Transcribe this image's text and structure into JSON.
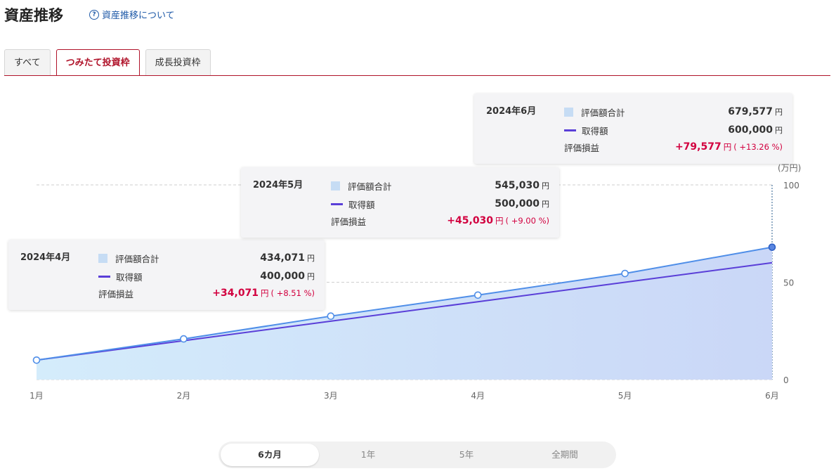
{
  "header": {
    "title": "資産推移",
    "help_link": "資産推移について"
  },
  "tabs": [
    {
      "label": "すべて",
      "active": false
    },
    {
      "label": "つみたて投資枠",
      "active": true
    },
    {
      "label": "成長投資枠",
      "active": false
    }
  ],
  "colors": {
    "accent": "#b0132a",
    "valuation_line": "#4f8ee8",
    "cost_line": "#5a3fd8",
    "gain": "#d2003f"
  },
  "tooltips": [
    {
      "date": "2024年4月",
      "value_label": "評価額合計",
      "value": "434,071",
      "cost_label": "取得額",
      "cost": "400,000",
      "gain_label": "評価損益",
      "gain": "+34,071",
      "gain_pct": "( +8.51 %)",
      "yen": "円"
    },
    {
      "date": "2024年5月",
      "value_label": "評価額合計",
      "value": "545,030",
      "cost_label": "取得額",
      "cost": "500,000",
      "gain_label": "評価損益",
      "gain": "+45,030",
      "gain_pct": "( +9.00 %)",
      "yen": "円"
    },
    {
      "date": "2024年6月",
      "value_label": "評価額合計",
      "value": "679,577",
      "cost_label": "取得額",
      "cost": "600,000",
      "gain_label": "評価損益",
      "gain": "+79,577",
      "gain_pct": "( +13.26 %)",
      "yen": "円"
    }
  ],
  "chart_data": {
    "type": "area",
    "categories": [
      "1月",
      "2月",
      "3月",
      "4月",
      "5月",
      "6月"
    ],
    "series": [
      {
        "name": "評価額合計",
        "values": [
          10.0,
          20.9,
          32.6,
          43.4,
          54.5,
          68.0
        ]
      },
      {
        "name": "取得額",
        "values": [
          10,
          20,
          30,
          40,
          50,
          60
        ]
      }
    ],
    "ylabel": "(万円)",
    "y_ticks": [
      "0",
      "50",
      "100"
    ],
    "ylim": [
      0,
      100
    ],
    "grid": true
  },
  "period": [
    {
      "label": "6カ月",
      "active": true
    },
    {
      "label": "1年",
      "active": false
    },
    {
      "label": "5年",
      "active": false
    },
    {
      "label": "全期間",
      "active": false
    }
  ]
}
